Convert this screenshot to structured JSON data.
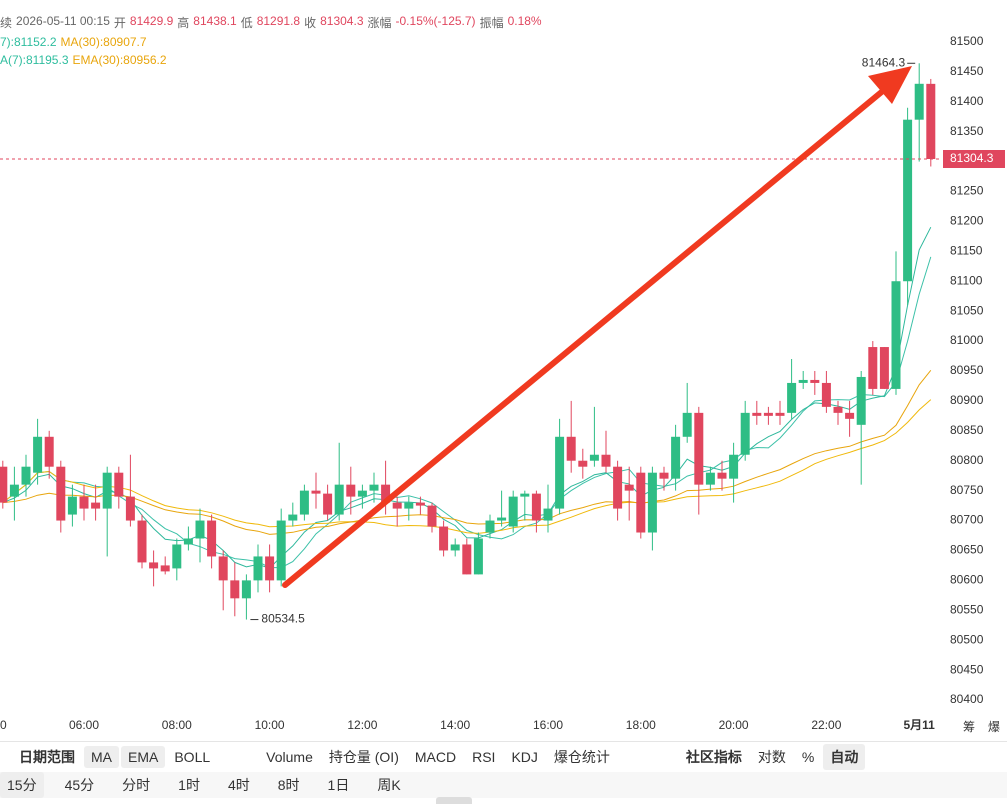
{
  "header": {
    "cut": "续",
    "datetime": "2026-05-11 00:15",
    "open_label": "开",
    "high_label": "高",
    "low_label": "低",
    "close_label": "收",
    "change_label": "涨幅",
    "change": "-0.15%(-125.7)",
    "amp_label": "振幅",
    "amp": "0.18%",
    "ma7": "7):81152.2",
    "ma30": "MA(30):80907.7",
    "ema7": "A(7):81195.3",
    "ema30": "EMA(30):80956.2"
  },
  "chart_data": {
    "type": "candlestick",
    "up_color": "#2ebd85",
    "down_color": "#e0465e",
    "grid": false,
    "categories": [
      null,
      null,
      null,
      null,
      null,
      null,
      null,
      "06:00",
      null,
      null,
      null,
      null,
      null,
      null,
      null,
      "08:00",
      null,
      null,
      null,
      null,
      null,
      null,
      null,
      "10:00",
      null,
      null,
      null,
      null,
      null,
      null,
      null,
      "12:00",
      null,
      null,
      null,
      null,
      null,
      null,
      null,
      "14:00",
      null,
      null,
      null,
      null,
      null,
      null,
      null,
      "16:00",
      null,
      null,
      null,
      null,
      null,
      null,
      null,
      "18:00",
      null,
      null,
      null,
      null,
      null,
      null,
      null,
      "20:00",
      null,
      null,
      null,
      null,
      null,
      null,
      null,
      "22:00",
      null,
      null,
      null,
      null,
      null,
      null,
      null,
      "5月11",
      null
    ],
    "edge_label": "0",
    "extra_labels": [
      "筹",
      "爆"
    ],
    "open": [
      80790,
      80740,
      80760,
      80780,
      80840,
      80790,
      80710,
      80740,
      80730,
      80720,
      80780,
      80740,
      80700,
      80630,
      80625,
      80620,
      80660,
      80670,
      80700,
      80640,
      80600,
      80570,
      80600,
      80640,
      80600,
      80700,
      80710,
      80750,
      80745,
      80710,
      80760,
      80740,
      80750,
      80760,
      80730,
      80720,
      80730,
      80725,
      80690,
      80650,
      80660,
      80610,
      80680,
      80700,
      80690,
      80740,
      80745,
      80700,
      80720,
      80840,
      80800,
      80800,
      80810,
      80790,
      80760,
      80780,
      80680,
      80780,
      80770,
      80840,
      80880,
      80760,
      80780,
      80770,
      80810,
      80880,
      80880,
      80880,
      80880,
      80930,
      80935,
      80930,
      80890,
      80880,
      80860,
      80990,
      80990,
      80920,
      81100,
      81370,
      81429.9
    ],
    "high": [
      80800,
      80790,
      80810,
      80870,
      80850,
      80800,
      80760,
      80760,
      80760,
      80790,
      80790,
      80810,
      80710,
      80650,
      80640,
      80670,
      80690,
      80720,
      80710,
      80650,
      80630,
      80610,
      80660,
      80660,
      80720,
      80730,
      80760,
      80780,
      80760,
      80830,
      80790,
      80760,
      80780,
      80800,
      80740,
      80740,
      80740,
      80730,
      80700,
      80670,
      80670,
      80680,
      80710,
      80750,
      80750,
      80750,
      80750,
      80760,
      80870,
      80900,
      80820,
      80890,
      80850,
      80800,
      80790,
      80790,
      80790,
      80790,
      80860,
      80930,
      80890,
      80790,
      80800,
      80830,
      80900,
      80900,
      80890,
      80900,
      80970,
      80950,
      80950,
      80950,
      80900,
      80900,
      80950,
      81000,
      80990,
      81150,
      81390,
      81464.3,
      81438.1
    ],
    "low": [
      80720,
      80700,
      80740,
      80760,
      80770,
      80680,
      80690,
      80700,
      80700,
      80640,
      80720,
      80690,
      80620,
      80590,
      80610,
      80600,
      80650,
      80630,
      80620,
      80550,
      80540,
      80534.5,
      80580,
      80580,
      80590,
      80690,
      80700,
      80720,
      80700,
      80700,
      80710,
      80720,
      80730,
      80710,
      80690,
      80700,
      80710,
      80680,
      80640,
      80640,
      80610,
      80610,
      80670,
      80690,
      80680,
      80700,
      80680,
      80680,
      80710,
      80780,
      80770,
      80790,
      80780,
      80700,
      80700,
      80670,
      80650,
      80750,
      80750,
      80830,
      80710,
      80750,
      80750,
      80730,
      80800,
      80860,
      80860,
      80860,
      80870,
      80920,
      80910,
      80880,
      80860,
      80840,
      80760,
      80910,
      80920,
      80910,
      81060,
      81300,
      81291.8
    ],
    "close": [
      80730,
      80760,
      80790,
      80840,
      80790,
      80700,
      80740,
      80720,
      80720,
      80780,
      80740,
      80700,
      80630,
      80620,
      80615,
      80660,
      80670,
      80700,
      80640,
      80600,
      80570,
      80600,
      80640,
      80600,
      80700,
      80710,
      80750,
      80745,
      80710,
      80760,
      80740,
      80750,
      80760,
      80730,
      80720,
      80730,
      80725,
      80690,
      80650,
      80660,
      80610,
      80670,
      80700,
      80705,
      80740,
      80745,
      80700,
      80720,
      80840,
      80800,
      80790,
      80810,
      80790,
      80720,
      80750,
      80680,
      80780,
      80770,
      80840,
      80880,
      80760,
      80780,
      80770,
      80810,
      80880,
      80875,
      80875,
      80875,
      80930,
      80935,
      80930,
      80890,
      80880,
      80870,
      80940,
      80920,
      80920,
      81100,
      81370,
      81430,
      81304.3
    ],
    "ylim": [
      80380,
      81550
    ],
    "yticks": [
      80400,
      80450,
      80500,
      80550,
      80600,
      80650,
      80700,
      80750,
      80800,
      80850,
      80900,
      80950,
      81000,
      81050,
      81100,
      81150,
      81200,
      81250,
      81300,
      81350,
      81400,
      81450,
      81500
    ]
  },
  "toolbar": [
    "日期范围",
    "MA",
    "EMA",
    "BOLL",
    "Volume",
    "持仓量 (OI)",
    "MACD",
    "RSI",
    "KDJ",
    "爆仓统计",
    "社区指标",
    "对数",
    "%",
    "自动"
  ],
  "periods": [
    "15分",
    "45分",
    "分时",
    "1时",
    "4时",
    "8时",
    "1日",
    "周K"
  ]
}
